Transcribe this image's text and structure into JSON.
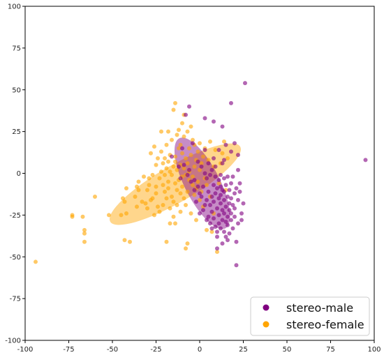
{
  "chart_data": {
    "type": "scatter",
    "title": "",
    "xlabel": "",
    "ylabel": "",
    "xlim": [
      -100,
      100
    ],
    "ylim": [
      -100,
      100
    ],
    "xticks": [
      -100,
      -75,
      -50,
      -25,
      0,
      25,
      50,
      75,
      100
    ],
    "yticks": [
      -100,
      -75,
      -50,
      -25,
      0,
      25,
      50,
      75,
      100
    ],
    "grid": false,
    "legend_position": "bottom-right",
    "series": [
      {
        "name": "stereo-female",
        "color": "#FFA500",
        "ellipse": {
          "center": [
            -14,
            -6.5
          ],
          "width": 86,
          "height": 22,
          "angle_deg": 30
        },
        "points": [
          [
            -94,
            -53
          ],
          [
            -73,
            -25
          ],
          [
            -73,
            -26
          ],
          [
            -67,
            -26
          ],
          [
            -66,
            -34
          ],
          [
            -66,
            -36
          ],
          [
            -66,
            -41
          ],
          [
            -60,
            -14
          ],
          [
            -52,
            -25
          ],
          [
            -45,
            -25
          ],
          [
            -44,
            -15
          ],
          [
            -43,
            -17
          ],
          [
            -43,
            -40
          ],
          [
            -42,
            -9
          ],
          [
            -42,
            -24
          ],
          [
            -40,
            -41
          ],
          [
            -37,
            -14
          ],
          [
            -36,
            -8
          ],
          [
            -36,
            -20
          ],
          [
            -35,
            -5
          ],
          [
            -35,
            -10
          ],
          [
            -33,
            -17
          ],
          [
            -32,
            -2
          ],
          [
            -31,
            -18
          ],
          [
            -30,
            -21
          ],
          [
            -30,
            -10
          ],
          [
            -29,
            -7
          ],
          [
            -29,
            -3
          ],
          [
            -28,
            -16
          ],
          [
            -28,
            12
          ],
          [
            -27,
            -1
          ],
          [
            -27,
            -15
          ],
          [
            -26,
            -25
          ],
          [
            -26,
            16
          ],
          [
            -25,
            -8
          ],
          [
            -25,
            -12
          ],
          [
            -25,
            5
          ],
          [
            -24,
            -20
          ],
          [
            -24,
            9
          ],
          [
            -23,
            -3
          ],
          [
            -23,
            -23
          ],
          [
            -22,
            1
          ],
          [
            -22,
            13
          ],
          [
            -22,
            25
          ],
          [
            -21,
            -19
          ],
          [
            -21,
            -7
          ],
          [
            -21,
            6
          ],
          [
            -20,
            -1
          ],
          [
            -20,
            9
          ],
          [
            -20,
            -11
          ],
          [
            -19,
            -15
          ],
          [
            -19,
            3
          ],
          [
            -19,
            17
          ],
          [
            -19,
            -41
          ],
          [
            -18,
            25
          ],
          [
            -18,
            -5
          ],
          [
            -18,
            -9
          ],
          [
            -18,
            7
          ],
          [
            -17,
            -30
          ],
          [
            -17,
            11
          ],
          [
            -17,
            -21
          ],
          [
            -17,
            1
          ],
          [
            -16,
            -14
          ],
          [
            -16,
            20
          ],
          [
            -16,
            -1
          ],
          [
            -15,
            4
          ],
          [
            -15,
            -17
          ],
          [
            -15,
            -26
          ],
          [
            -15,
            38
          ],
          [
            -14,
            10
          ],
          [
            -14,
            -6
          ],
          [
            -14,
            42
          ],
          [
            -14,
            -30
          ],
          [
            -14,
            7
          ],
          [
            -13,
            -10
          ],
          [
            -13,
            23
          ],
          [
            -13,
            2
          ],
          [
            -13,
            -19
          ],
          [
            -12,
            15
          ],
          [
            -12,
            -4
          ],
          [
            -12,
            26
          ],
          [
            -11,
            -12
          ],
          [
            -11,
            5
          ],
          [
            -11,
            -23
          ],
          [
            -11,
            17
          ],
          [
            -10,
            30
          ],
          [
            -10,
            -2
          ],
          [
            -10,
            -8
          ],
          [
            -10,
            12
          ],
          [
            -9,
            35
          ],
          [
            -9,
            -15
          ],
          [
            -9,
            3
          ],
          [
            -9,
            22
          ],
          [
            -8,
            -45
          ],
          [
            -8,
            -1
          ],
          [
            -8,
            9
          ],
          [
            -8,
            -19
          ],
          [
            -7,
            -42
          ],
          [
            -7,
            25
          ],
          [
            -7,
            6
          ],
          [
            -7,
            -11
          ],
          [
            -6,
            15
          ],
          [
            -6,
            -4
          ],
          [
            -6,
            1
          ],
          [
            -5,
            -24
          ],
          [
            -5,
            11
          ],
          [
            -5,
            28
          ],
          [
            -4,
            -7
          ],
          [
            -4,
            20
          ],
          [
            -4,
            -2
          ],
          [
            -3,
            4
          ],
          [
            -3,
            -13
          ],
          [
            -3,
            17
          ],
          [
            -2,
            -9
          ],
          [
            -2,
            8
          ],
          [
            -2,
            -28
          ],
          [
            -1,
            13
          ],
          [
            -1,
            -5
          ],
          [
            0,
            2
          ],
          [
            0,
            -16
          ],
          [
            0,
            18
          ],
          [
            1,
            -11
          ],
          [
            1,
            6
          ],
          [
            2,
            -20
          ],
          [
            2,
            10
          ],
          [
            3,
            -3
          ],
          [
            3,
            15
          ],
          [
            4,
            -34
          ],
          [
            4,
            -7
          ],
          [
            5,
            8
          ],
          [
            6,
            -14
          ],
          [
            6,
            19
          ],
          [
            7,
            -35
          ],
          [
            8,
            -24
          ],
          [
            8,
            4
          ],
          [
            9,
            14
          ],
          [
            10,
            -47
          ],
          [
            11,
            -6
          ],
          [
            12,
            6
          ],
          [
            13,
            12
          ],
          [
            14,
            19
          ],
          [
            15,
            -10
          ],
          [
            16,
            9
          ]
        ]
      },
      {
        "name": "stereo-male",
        "color": "#800080",
        "ellipse": {
          "center": [
            1.5,
            -6
          ],
          "width": 58,
          "height": 21,
          "angle_deg": -63
        },
        "points": [
          [
            95,
            8
          ],
          [
            26,
            54
          ],
          [
            18,
            42
          ],
          [
            13,
            28
          ],
          [
            8,
            31
          ],
          [
            3,
            33
          ],
          [
            -6,
            40
          ],
          [
            -8,
            35
          ],
          [
            -4,
            18
          ],
          [
            -10,
            15
          ],
          [
            -16,
            10
          ],
          [
            -12,
            4
          ],
          [
            -6,
            2
          ],
          [
            -3,
            -4
          ],
          [
            -1,
            7
          ],
          [
            0,
            -12
          ],
          [
            1,
            4
          ],
          [
            2,
            -22
          ],
          [
            2,
            -8
          ],
          [
            3,
            0
          ],
          [
            3,
            14
          ],
          [
            4,
            -16
          ],
          [
            4,
            -3
          ],
          [
            5,
            -26
          ],
          [
            5,
            -11
          ],
          [
            5,
            6
          ],
          [
            6,
            -19
          ],
          [
            6,
            -1
          ],
          [
            6,
            -30
          ],
          [
            7,
            -14
          ],
          [
            7,
            2
          ],
          [
            7,
            -23
          ],
          [
            8,
            -7
          ],
          [
            8,
            -27
          ],
          [
            8,
            9
          ],
          [
            8,
            -17
          ],
          [
            9,
            -2
          ],
          [
            9,
            -32
          ],
          [
            9,
            -12
          ],
          [
            9,
            4
          ],
          [
            10,
            -21
          ],
          [
            10,
            -9
          ],
          [
            10,
            -45
          ],
          [
            10,
            -35
          ],
          [
            11,
            -15
          ],
          [
            11,
            -25
          ],
          [
            11,
            -4
          ],
          [
            11,
            -30
          ],
          [
            11,
            14
          ],
          [
            12,
            -18
          ],
          [
            12,
            -8
          ],
          [
            12,
            -33
          ],
          [
            12,
            -13
          ],
          [
            12,
            -1
          ],
          [
            13,
            -22
          ],
          [
            13,
            -28
          ],
          [
            13,
            -10
          ],
          [
            13,
            6
          ],
          [
            13,
            -42
          ],
          [
            14,
            -16
          ],
          [
            14,
            -24
          ],
          [
            14,
            -35
          ],
          [
            14,
            -3
          ],
          [
            14,
            -11
          ],
          [
            15,
            -20
          ],
          [
            15,
            -29
          ],
          [
            15,
            -38
          ],
          [
            15,
            -7
          ],
          [
            15,
            17
          ],
          [
            16,
            -14
          ],
          [
            16,
            -26
          ],
          [
            16,
            -2
          ],
          [
            16,
            -31
          ],
          [
            16,
            -40
          ],
          [
            17,
            -18
          ],
          [
            17,
            -10
          ],
          [
            17,
            -22
          ],
          [
            17,
            -36
          ],
          [
            18,
            -28
          ],
          [
            18,
            -6
          ],
          [
            18,
            -15
          ],
          [
            18,
            -24
          ],
          [
            19,
            -33
          ],
          [
            19,
            -19
          ],
          [
            19,
            -2
          ],
          [
            20,
            -12
          ],
          [
            20,
            -26
          ],
          [
            20,
            -21
          ],
          [
            21,
            -41
          ],
          [
            21,
            -55
          ],
          [
            21,
            -9
          ],
          [
            22,
            -30
          ],
          [
            22,
            -16
          ],
          [
            22,
            2
          ],
          [
            23,
            -6
          ],
          [
            23,
            -11
          ],
          [
            24,
            -24
          ],
          [
            24,
            -28
          ],
          [
            25,
            -18
          ],
          [
            22,
            11
          ],
          [
            20,
            18
          ],
          [
            18,
            13
          ],
          [
            14,
            8
          ],
          [
            10,
            -38
          ],
          [
            7,
            -33
          ],
          [
            4,
            -28
          ],
          [
            3,
            -19
          ],
          [
            1,
            -14
          ],
          [
            0,
            -24
          ],
          [
            -1,
            -8
          ],
          [
            -2,
            -17
          ],
          [
            -3,
            -10
          ],
          [
            -5,
            -5
          ],
          [
            -7,
            -1
          ],
          [
            -9,
            5
          ],
          [
            -11,
            -3
          ]
        ]
      }
    ]
  },
  "legend": {
    "items": [
      {
        "label": "stereo-male",
        "color": "#800080"
      },
      {
        "label": "stereo-female",
        "color": "#FFA500"
      }
    ]
  }
}
